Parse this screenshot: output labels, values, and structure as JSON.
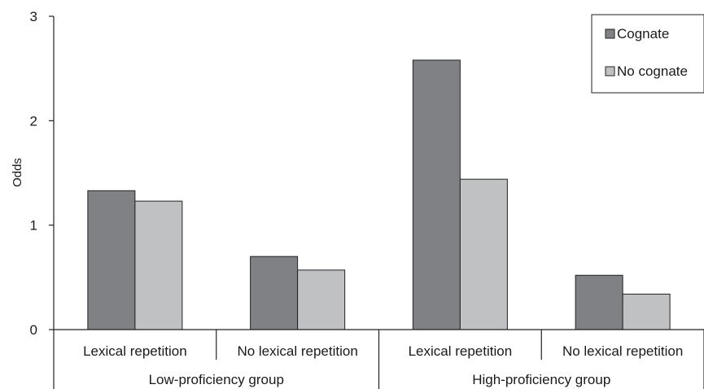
{
  "chart_data": {
    "type": "bar",
    "ylabel": "Odds",
    "ylim": [
      0,
      3
    ],
    "yticks": [
      0,
      1,
      2,
      3
    ],
    "grid": false,
    "legend_position": "top-right",
    "categories": [
      "Lexical repetition",
      "No lexical repetition",
      "Lexical repetition",
      "No lexical repetition"
    ],
    "groups": [
      {
        "label": "Low-proficiency group",
        "categories": [
          "Lexical repetition",
          "No lexical repetition"
        ]
      },
      {
        "label": "High-proficiency group",
        "categories": [
          "Lexical repetition",
          "No lexical repetition"
        ]
      }
    ],
    "series": [
      {
        "name": "Cognate",
        "color": "#808184",
        "values": [
          1.33,
          0.7,
          2.58,
          0.52
        ]
      },
      {
        "name": "No cognate",
        "color": "#c0c1c3",
        "values": [
          1.23,
          0.57,
          1.44,
          0.34
        ]
      }
    ]
  }
}
